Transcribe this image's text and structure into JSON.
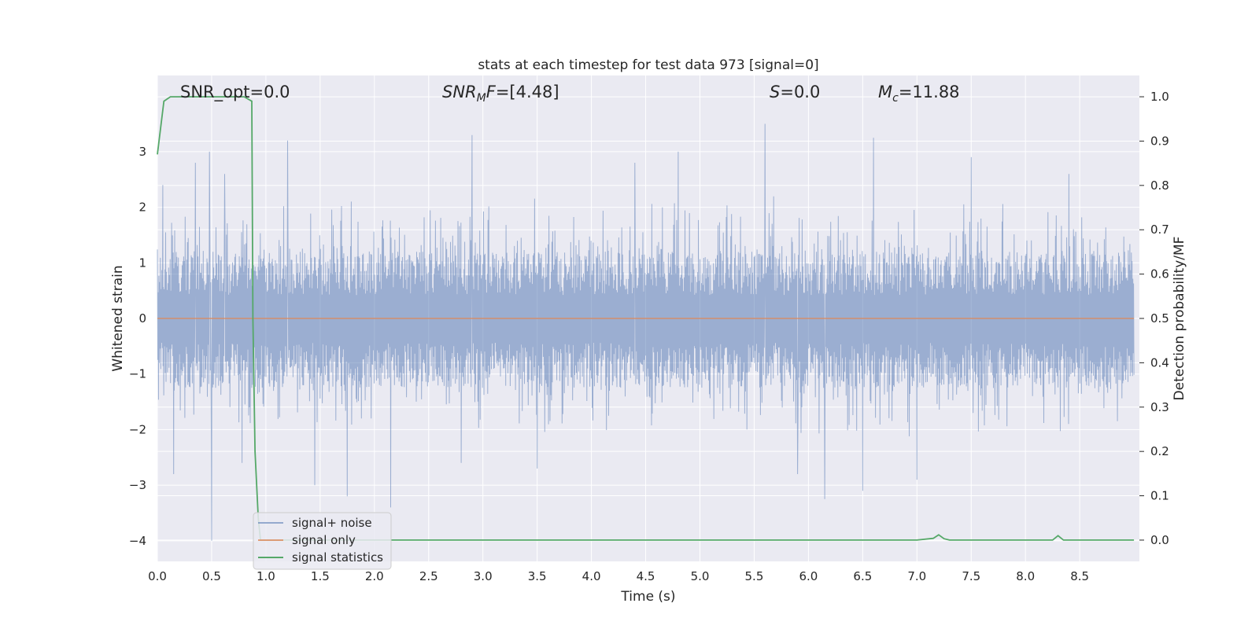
{
  "chart_data": {
    "type": "line",
    "title": "stats at each timestep for test data 973 [signal=0]",
    "xlabel": "Time (s)",
    "ylabel": "Whitened strain",
    "y2label": "Detection probability/MF",
    "xlim": [
      0.0,
      9.0
    ],
    "ylim": [
      -4.37,
      4.37
    ],
    "y2lim": [
      -0.048,
      1.048
    ],
    "x_ticks": [
      0.0,
      0.5,
      1.0,
      1.5,
      2.0,
      2.5,
      3.0,
      3.5,
      4.0,
      4.5,
      5.0,
      5.5,
      6.0,
      6.5,
      7.0,
      7.5,
      8.0,
      8.5
    ],
    "x_tick_labels": [
      "0.0",
      "0.5",
      "1.0",
      "1.5",
      "2.0",
      "2.5",
      "3.0",
      "3.5",
      "4.0",
      "4.5",
      "5.0",
      "5.5",
      "6.0",
      "6.5",
      "7.0",
      "7.5",
      "8.0",
      "8.5"
    ],
    "y_ticks": [
      -4,
      -3,
      -2,
      -1,
      0,
      1,
      2,
      3
    ],
    "y_tick_labels": [
      "−4",
      "−3",
      "−2",
      "−1",
      "0",
      "1",
      "2",
      "3"
    ],
    "y2_ticks": [
      0.0,
      0.1,
      0.2,
      0.3,
      0.4,
      0.5,
      0.6,
      0.7,
      0.8,
      0.9,
      1.0
    ],
    "y2_tick_labels": [
      "0.0",
      "0.1",
      "0.2",
      "0.3",
      "0.4",
      "0.5",
      "0.6",
      "0.7",
      "0.8",
      "0.9",
      "1.0"
    ],
    "grid": true,
    "legend_position": "bottom-left",
    "series": [
      {
        "name": "signal+ noise",
        "axis": "left",
        "color": "#4c72b0",
        "style": "dense noise",
        "typical_envelope": [
          -1.25,
          1.2
        ],
        "peak_samples": [
          {
            "x": 0.05,
            "y": 2.4
          },
          {
            "x": 0.35,
            "y": 2.8
          },
          {
            "x": 0.48,
            "y": 3.0
          },
          {
            "x": 0.62,
            "y": 2.6
          },
          {
            "x": 1.2,
            "y": 3.2
          },
          {
            "x": 2.9,
            "y": 3.3
          },
          {
            "x": 4.4,
            "y": 2.8
          },
          {
            "x": 4.8,
            "y": 3.0
          },
          {
            "x": 5.6,
            "y": 3.5
          },
          {
            "x": 6.6,
            "y": 3.25
          },
          {
            "x": 7.5,
            "y": 2.9
          },
          {
            "x": 8.4,
            "y": 2.6
          }
        ],
        "trough_samples": [
          {
            "x": 0.15,
            "y": -2.8
          },
          {
            "x": 0.5,
            "y": -4.0
          },
          {
            "x": 0.78,
            "y": -2.6
          },
          {
            "x": 1.45,
            "y": -3.0
          },
          {
            "x": 1.75,
            "y": -3.2
          },
          {
            "x": 2.15,
            "y": -3.4
          },
          {
            "x": 2.8,
            "y": -2.6
          },
          {
            "x": 3.5,
            "y": -2.7
          },
          {
            "x": 5.9,
            "y": -2.8
          },
          {
            "x": 6.15,
            "y": -3.25
          },
          {
            "x": 6.5,
            "y": -3.1
          },
          {
            "x": 7.0,
            "y": -2.9
          }
        ]
      },
      {
        "name": "signal only",
        "axis": "left",
        "color": "#dd8452",
        "x": [
          0.0,
          9.0
        ],
        "y": [
          0.0,
          0.0
        ]
      },
      {
        "name": "signal statistics",
        "axis": "right",
        "color": "#55a868",
        "x": [
          0.0,
          0.06,
          0.12,
          0.2,
          0.4,
          0.6,
          0.8,
          0.87,
          0.88,
          0.9,
          0.93,
          0.95,
          1.0,
          2.0,
          3.0,
          4.0,
          5.0,
          6.0,
          7.0,
          7.15,
          7.2,
          7.25,
          7.3,
          8.0,
          8.25,
          8.3,
          8.35,
          8.4,
          9.0
        ],
        "y": [
          0.87,
          0.99,
          1.0,
          1.0,
          1.0,
          1.0,
          1.0,
          0.99,
          0.5,
          0.2,
          0.05,
          0.0,
          0.0,
          0.0,
          0.0,
          0.0,
          0.0,
          0.0,
          0.0,
          0.004,
          0.012,
          0.003,
          0.0,
          0.0,
          0.0,
          0.01,
          0.0,
          0.0,
          0.0
        ]
      }
    ],
    "annotations": [
      {
        "id": "snr-opt",
        "text": "SNR_opt=0.0"
      },
      {
        "id": "snr-mf",
        "text": "SNR_MF=[4.48]"
      },
      {
        "id": "s-stat",
        "text": "S=0.0"
      },
      {
        "id": "mc",
        "text": "M_c=11.88"
      }
    ],
    "style": {
      "background": "#eaeaf2",
      "grid_color": "#ffffff"
    }
  }
}
